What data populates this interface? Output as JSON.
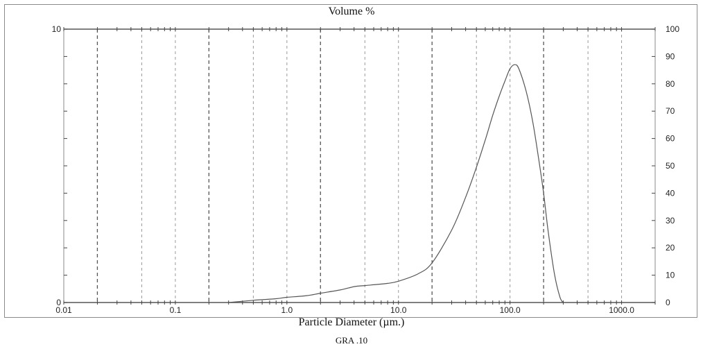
{
  "chart_data": {
    "type": "line",
    "title": "Volume %",
    "xlabel": "Particle Diameter (µm.)",
    "x_scale": "log",
    "xlim": [
      0.01,
      2000
    ],
    "x_tick_labels": [
      "0.01",
      "0.1",
      "1.0",
      "10.0",
      "100.0",
      "1000.0"
    ],
    "ylim_left": [
      0,
      10
    ],
    "y_left_tick_labels": [
      "0",
      "10"
    ],
    "ylim_right": [
      0,
      100
    ],
    "y_right_tick_labels": [
      "0",
      "10",
      "20",
      "30",
      "40",
      "50",
      "60",
      "70",
      "80",
      "90",
      "100"
    ],
    "grid": "vertical-dashed",
    "series": [
      {
        "x": [
          0.3,
          0.5,
          0.8,
          1.0,
          1.5,
          2.0,
          3.0,
          4.0,
          5.0,
          6.0,
          8.0,
          10.0,
          15.0,
          20.0,
          30.0,
          40.0,
          50.0,
          60.0,
          70.0,
          80.0,
          90.0,
          100.0,
          110.0,
          120.0,
          140.0,
          160.0,
          180.0,
          200.0,
          220.0,
          250.0,
          280.0,
          300.0
        ],
        "values": [
          0.0,
          0.08,
          0.14,
          0.19,
          0.25,
          0.34,
          0.46,
          0.58,
          0.62,
          0.65,
          0.7,
          0.78,
          1.05,
          1.45,
          2.65,
          3.85,
          4.95,
          5.95,
          6.85,
          7.55,
          8.1,
          8.55,
          8.7,
          8.55,
          7.7,
          6.6,
          5.3,
          4.0,
          2.6,
          1.05,
          0.2,
          0.0
        ]
      }
    ]
  },
  "caption": "GRA .10"
}
